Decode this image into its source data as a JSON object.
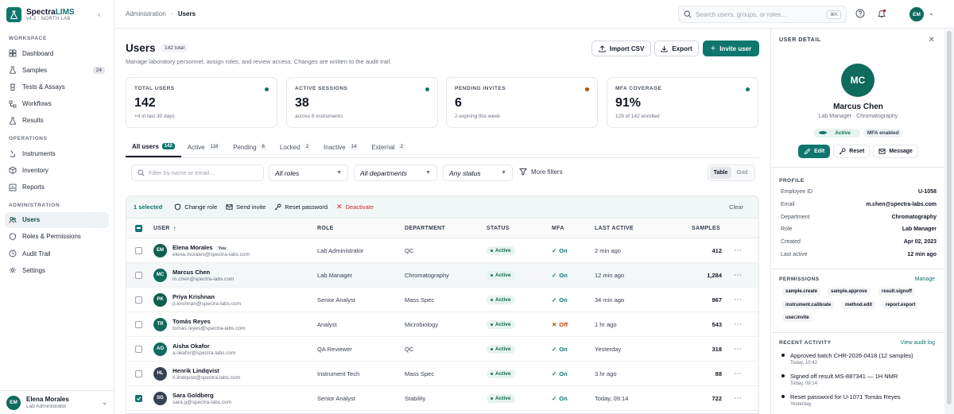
{
  "app": {
    "name_a": "Spectra",
    "name_b": "LIMS",
    "version": "v4.2 · NORTH LAB"
  },
  "sidebar": {
    "sections": [
      {
        "label": "WORKSPACE",
        "items": [
          {
            "label": "Dashboard",
            "icon": "grid-icon"
          },
          {
            "label": "Samples",
            "icon": "flask-icon",
            "count": "24"
          },
          {
            "label": "Tests & Assays",
            "icon": "beaker-icon"
          },
          {
            "label": "Workflows",
            "icon": "workflow-icon"
          },
          {
            "label": "Results",
            "icon": "flask-icon"
          }
        ]
      },
      {
        "label": "OPERATIONS",
        "items": [
          {
            "label": "Instruments",
            "icon": "microscope-icon"
          },
          {
            "label": "Inventory",
            "icon": "box-icon"
          },
          {
            "label": "Reports",
            "icon": "chart-icon"
          }
        ]
      },
      {
        "label": "ADMINISTRATION",
        "items": [
          {
            "label": "Users",
            "icon": "users-icon",
            "active": true
          },
          {
            "label": "Roles & Permissions",
            "icon": "shield-icon"
          },
          {
            "label": "Audit Trail",
            "icon": "clock-icon"
          },
          {
            "label": "Settings",
            "icon": "gear-icon"
          }
        ]
      }
    ],
    "footer": {
      "initials": "EM",
      "name": "Elena Morales",
      "role": "Lab Administrator"
    }
  },
  "topbar": {
    "breadcrumb_parent": "Administration",
    "breadcrumb_sep": "·",
    "breadcrumb_current": "Users",
    "search_placeholder": "Search users, groups, or roles...",
    "search_shortcut": "⌘K",
    "avatar_initials": "EM"
  },
  "page": {
    "title": "Users",
    "total_badge": "142 total",
    "subtitle": "Manage laboratory personnel, assign roles, and review access. Changes are written to the audit trail.",
    "import_label": "Import CSV",
    "export_label": "Export",
    "invite_label": "Invite user"
  },
  "kpis": [
    {
      "label": "TOTAL USERS",
      "value": "142",
      "sub": "+4 in last 30 days",
      "dot_color": "#0f766e"
    },
    {
      "label": "ACTIVE SESSIONS",
      "value": "38",
      "sub": "across 6 instruments",
      "dot_color": "#0f766e"
    },
    {
      "label": "PENDING INVITES",
      "value": "6",
      "sub": "2 expiring this week",
      "dot_color": "#b45309"
    },
    {
      "label": "MFA COVERAGE",
      "value": "91%",
      "sub": "129 of 142 enrolled",
      "dot_color": "#0f766e"
    }
  ],
  "tabs": [
    {
      "label": "All users",
      "count": "142",
      "active": true
    },
    {
      "label": "Active",
      "count": "118"
    },
    {
      "label": "Pending",
      "count": "6"
    },
    {
      "label": "Locked",
      "count": "2"
    },
    {
      "label": "Inactive",
      "count": "14"
    },
    {
      "label": "External",
      "count": "2"
    }
  ],
  "filters": {
    "search_placeholder": "Filter by name or email...",
    "roles": "All roles",
    "departments": "All departments",
    "status": "Any status",
    "more": "More filters",
    "view_table": "Table",
    "view_grid": "Grid"
  },
  "bulk": {
    "selected": "1 selected",
    "change_role": "Change role",
    "send_invite": "Send invite",
    "reset_password": "Reset password",
    "deactivate": "Deactivate",
    "clear": "Clear"
  },
  "table": {
    "columns": {
      "user": "USER",
      "sort": "↑",
      "role": "ROLE",
      "department": "DEPARTMENT",
      "status": "STATUS",
      "mfa": "MFA",
      "last_active": "LAST ACTIVE",
      "samples": "SAMPLES"
    },
    "rows": [
      {
        "initials": "EM",
        "name": "Elena Morales",
        "you": "You",
        "email": "elena.morales@spectra-labs.com",
        "role": "Lab Administrator",
        "department": "QC",
        "status": "Active",
        "mfa": "On",
        "mfa_on": true,
        "last_active": "2 min ago",
        "samples": "412",
        "avatar_color": "#0f5e50",
        "checked": false
      },
      {
        "initials": "MC",
        "name": "Marcus Chen",
        "email": "m.chen@spectra-labs.com",
        "role": "Lab Manager",
        "department": "Chromatography",
        "status": "Active",
        "mfa": "On",
        "mfa_on": true,
        "last_active": "12 min ago",
        "samples": "1,284",
        "avatar_color": "#0f6b5c",
        "checked": false,
        "highlight": true
      },
      {
        "initials": "PK",
        "name": "Priya Krishnan",
        "email": "p.krishnan@spectra-labs.com",
        "role": "Senior Analyst",
        "department": "Mass Spec",
        "status": "Active",
        "mfa": "On",
        "mfa_on": true,
        "last_active": "34 min ago",
        "samples": "967",
        "avatar_color": "#0f5e50",
        "checked": false
      },
      {
        "initials": "TR",
        "name": "Tomás Reyes",
        "email": "tomas.reyes@spectra-labs.com",
        "role": "Analyst",
        "department": "Microbiology",
        "status": "Active",
        "mfa": "Off",
        "mfa_on": false,
        "last_active": "1 hr ago",
        "samples": "543",
        "avatar_color": "#0f6b5c",
        "checked": false
      },
      {
        "initials": "AO",
        "name": "Aisha Okafor",
        "email": "a.okafor@spectra-labs.com",
        "role": "QA Reviewer",
        "department": "QC",
        "status": "Active",
        "mfa": "On",
        "mfa_on": true,
        "last_active": "Yesterday",
        "samples": "318",
        "avatar_color": "#0f6b5c",
        "checked": false
      },
      {
        "initials": "HL",
        "name": "Henrik Lindqvist",
        "email": "h.lindqvist@spectra-labs.com",
        "role": "Instrument Tech",
        "department": "Mass Spec",
        "status": "Active",
        "mfa": "On",
        "mfa_on": true,
        "last_active": "3 hr ago",
        "samples": "88",
        "avatar_color": "#374151",
        "checked": false
      },
      {
        "initials": "SG",
        "name": "Sara Goldberg",
        "email": "sara.g@spectra-labs.com",
        "role": "Senior Analyst",
        "department": "Stability",
        "status": "Active",
        "mfa": "On",
        "mfa_on": true,
        "last_active": "Today, 09:14",
        "samples": "722",
        "avatar_color": "#374151",
        "checked": true
      }
    ]
  },
  "detail": {
    "header": "USER DETAIL",
    "initials": "MC",
    "name": "Marcus Chen",
    "role_line": "Lab Manager · Chromatography",
    "badge_active": "Active",
    "badge_mfa": "MFA enabled",
    "edit": "Edit",
    "reset": "Reset",
    "message": "Message",
    "profile_label": "PROFILE",
    "profile": [
      {
        "k": "Employee ID",
        "v": "U-1058"
      },
      {
        "k": "Email",
        "v": "m.chen@spectra-labs.com"
      },
      {
        "k": "Department",
        "v": "Chromatography"
      },
      {
        "k": "Role",
        "v": "Lab Manager"
      },
      {
        "k": "Created",
        "v": "Apr 02, 2023"
      },
      {
        "k": "Last active",
        "v": "12 min ago"
      }
    ],
    "permissions_label": "PERMISSIONS",
    "manage": "Manage",
    "permissions": [
      "sample.create",
      "sample.approve",
      "result.signoff",
      "instrument.calibrate",
      "method.edit",
      "report.export",
      "user.invite"
    ],
    "activity_label": "RECENT ACTIVITY",
    "view_audit": "View audit log",
    "activity": [
      {
        "text": "Approved batch CHR-2026-0418 (12 samples)",
        "time": "Today, 10:42"
      },
      {
        "text": "Signed off result MS-887341 — 1H NMR",
        "time": "Today, 09:14"
      },
      {
        "text": "Reset password for U-1071 Tomás Reyes",
        "time": "Yesterday"
      }
    ]
  }
}
